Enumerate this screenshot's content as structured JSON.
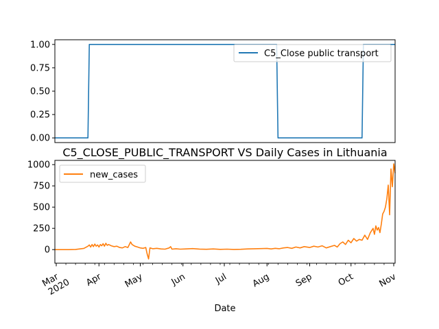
{
  "chart_data": [
    {
      "type": "line",
      "title": "",
      "xlabel": "",
      "ylabel": "",
      "xlim": [
        "2020-02-29",
        "2020-11-02"
      ],
      "ylim": [
        -0.05,
        1.05
      ],
      "yticks": [
        0.0,
        0.25,
        0.5,
        0.75,
        1.0
      ],
      "ytick_labels": [
        "0.00",
        "0.25",
        "0.50",
        "0.75",
        "1.00"
      ],
      "legend": "upper right",
      "grid": false,
      "series": [
        {
          "name": "C5_Close public transport",
          "color": "#1f77b4",
          "points": [
            [
              "2020-02-29",
              0
            ],
            [
              "2020-03-24",
              0
            ],
            [
              "2020-03-25",
              1
            ],
            [
              "2020-08-08",
              1
            ],
            [
              "2020-08-09",
              0
            ],
            [
              "2020-10-09",
              0
            ],
            [
              "2020-10-10",
              1
            ],
            [
              "2020-11-02",
              1
            ]
          ]
        }
      ]
    },
    {
      "type": "line",
      "title": "C5_CLOSE_PUBLIC_TRANSPORT VS Daily Cases in Lithuania",
      "xlabel": "Date",
      "ylabel": "",
      "xlim": [
        "2020-02-29",
        "2020-11-02"
      ],
      "ylim": [
        -160,
        1050
      ],
      "yticks": [
        0,
        250,
        500,
        750,
        1000
      ],
      "ytick_labels": [
        "0",
        "250",
        "500",
        "750",
        "1000"
      ],
      "xticks": [
        {
          "date": "2020-03-01",
          "label": "Mar",
          "sub": "2020"
        },
        {
          "date": "2020-04-01",
          "label": "Apr",
          "sub": ""
        },
        {
          "date": "2020-05-01",
          "label": "May",
          "sub": ""
        },
        {
          "date": "2020-06-01",
          "label": "Jun",
          "sub": ""
        },
        {
          "date": "2020-07-01",
          "label": "Jul",
          "sub": ""
        },
        {
          "date": "2020-08-01",
          "label": "Aug",
          "sub": ""
        },
        {
          "date": "2020-09-01",
          "label": "Sep",
          "sub": ""
        },
        {
          "date": "2020-10-01",
          "label": "Oct",
          "sub": ""
        },
        {
          "date": "2020-11-01",
          "label": "Nov",
          "sub": ""
        }
      ],
      "legend": "upper left",
      "grid": false,
      "series": [
        {
          "name": "new_cases",
          "color": "#ff7f0e",
          "points": [
            [
              "2020-02-29",
              0
            ],
            [
              "2020-03-10",
              0
            ],
            [
              "2020-03-15",
              2
            ],
            [
              "2020-03-18",
              8
            ],
            [
              "2020-03-21",
              14
            ],
            [
              "2020-03-24",
              40
            ],
            [
              "2020-03-25",
              55
            ],
            [
              "2020-03-26",
              30
            ],
            [
              "2020-03-27",
              60
            ],
            [
              "2020-03-28",
              35
            ],
            [
              "2020-03-29",
              65
            ],
            [
              "2020-03-30",
              40
            ],
            [
              "2020-03-31",
              55
            ],
            [
              "2020-04-01",
              30
            ],
            [
              "2020-04-02",
              60
            ],
            [
              "2020-04-03",
              45
            ],
            [
              "2020-04-04",
              70
            ],
            [
              "2020-04-05",
              40
            ],
            [
              "2020-04-06",
              75
            ],
            [
              "2020-04-07",
              50
            ],
            [
              "2020-04-08",
              60
            ],
            [
              "2020-04-10",
              45
            ],
            [
              "2020-04-12",
              35
            ],
            [
              "2020-04-14",
              40
            ],
            [
              "2020-04-16",
              25
            ],
            [
              "2020-04-18",
              20
            ],
            [
              "2020-04-20",
              35
            ],
            [
              "2020-04-22",
              25
            ],
            [
              "2020-04-24",
              90
            ],
            [
              "2020-04-25",
              60
            ],
            [
              "2020-04-27",
              40
            ],
            [
              "2020-04-29",
              30
            ],
            [
              "2020-05-01",
              20
            ],
            [
              "2020-05-03",
              15
            ],
            [
              "2020-05-05",
              25
            ],
            [
              "2020-05-06",
              -50
            ],
            [
              "2020-05-07",
              -110
            ],
            [
              "2020-05-08",
              20
            ],
            [
              "2020-05-10",
              10
            ],
            [
              "2020-05-13",
              15
            ],
            [
              "2020-05-16",
              8
            ],
            [
              "2020-05-19",
              5
            ],
            [
              "2020-05-22",
              20
            ],
            [
              "2020-05-23",
              35
            ],
            [
              "2020-05-24",
              5
            ],
            [
              "2020-05-27",
              10
            ],
            [
              "2020-05-30",
              5
            ],
            [
              "2020-06-03",
              8
            ],
            [
              "2020-06-08",
              12
            ],
            [
              "2020-06-13",
              6
            ],
            [
              "2020-06-18",
              4
            ],
            [
              "2020-06-23",
              8
            ],
            [
              "2020-06-28",
              3
            ],
            [
              "2020-07-03",
              5
            ],
            [
              "2020-07-08",
              2
            ],
            [
              "2020-07-13",
              4
            ],
            [
              "2020-07-18",
              8
            ],
            [
              "2020-07-23",
              10
            ],
            [
              "2020-07-28",
              12
            ],
            [
              "2020-08-01",
              14
            ],
            [
              "2020-08-04",
              8
            ],
            [
              "2020-08-07",
              15
            ],
            [
              "2020-08-10",
              10
            ],
            [
              "2020-08-13",
              20
            ],
            [
              "2020-08-16",
              25
            ],
            [
              "2020-08-19",
              15
            ],
            [
              "2020-08-22",
              30
            ],
            [
              "2020-08-25",
              20
            ],
            [
              "2020-08-28",
              35
            ],
            [
              "2020-09-01",
              25
            ],
            [
              "2020-09-04",
              40
            ],
            [
              "2020-09-07",
              30
            ],
            [
              "2020-09-10",
              45
            ],
            [
              "2020-09-13",
              20
            ],
            [
              "2020-09-16",
              35
            ],
            [
              "2020-09-19",
              50
            ],
            [
              "2020-09-21",
              30
            ],
            [
              "2020-09-23",
              70
            ],
            [
              "2020-09-25",
              90
            ],
            [
              "2020-09-27",
              60
            ],
            [
              "2020-09-29",
              110
            ],
            [
              "2020-10-01",
              80
            ],
            [
              "2020-10-03",
              130
            ],
            [
              "2020-10-05",
              100
            ],
            [
              "2020-10-07",
              120
            ],
            [
              "2020-10-09",
              110
            ],
            [
              "2020-10-11",
              170
            ],
            [
              "2020-10-13",
              120
            ],
            [
              "2020-10-15",
              200
            ],
            [
              "2020-10-17",
              250
            ],
            [
              "2020-10-18",
              180
            ],
            [
              "2020-10-19",
              280
            ],
            [
              "2020-10-20",
              230
            ],
            [
              "2020-10-21",
              260
            ],
            [
              "2020-10-22",
              200
            ],
            [
              "2020-10-23",
              300
            ],
            [
              "2020-10-24",
              420
            ],
            [
              "2020-10-25",
              450
            ],
            [
              "2020-10-26",
              500
            ],
            [
              "2020-10-27",
              600
            ],
            [
              "2020-10-28",
              760
            ],
            [
              "2020-10-29",
              410
            ],
            [
              "2020-10-30",
              950
            ],
            [
              "2020-10-31",
              740
            ],
            [
              "2020-11-01",
              1010
            ],
            [
              "2020-11-02",
              900
            ]
          ]
        }
      ]
    }
  ]
}
